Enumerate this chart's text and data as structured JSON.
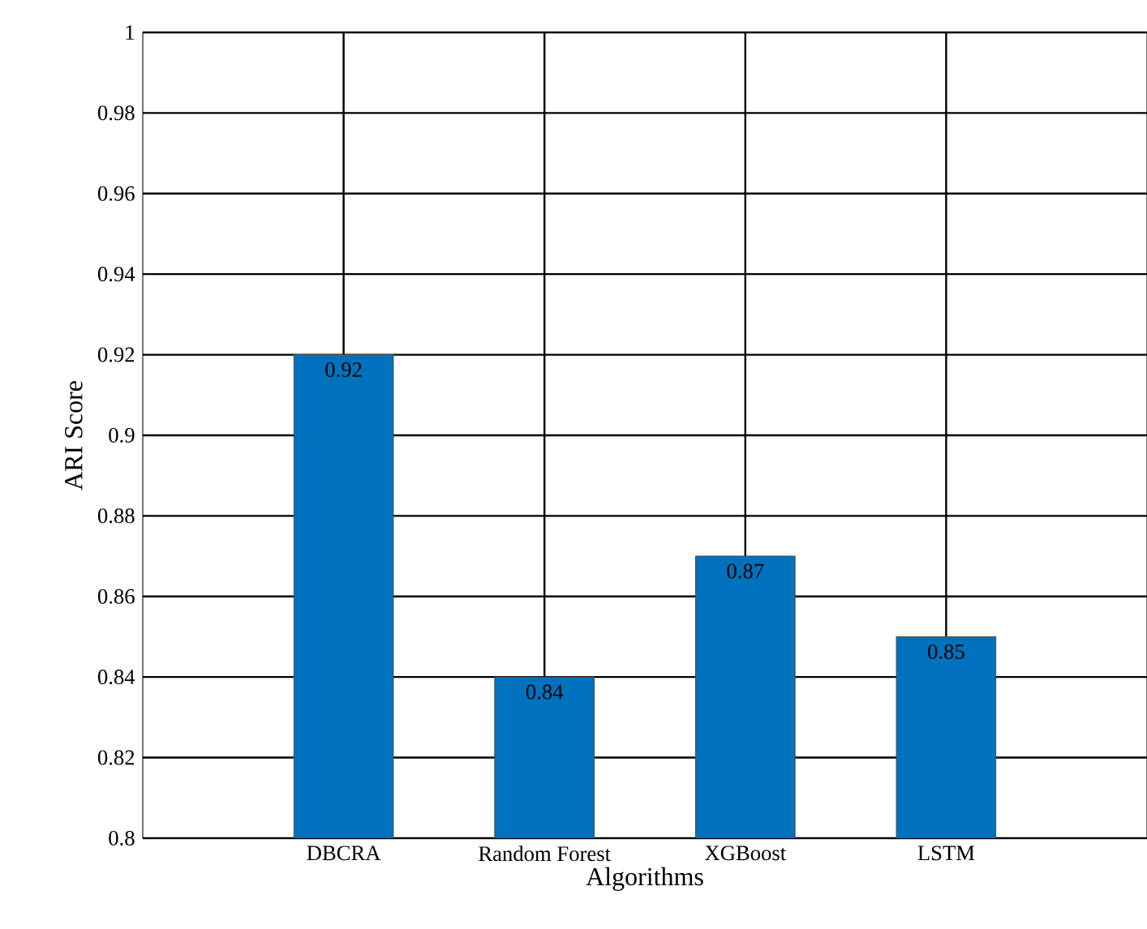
{
  "chart_data": {
    "type": "bar",
    "xlabel": "Algorithms",
    "ylabel": "ARI Score",
    "categories": [
      "DBCRA",
      "Random Forest",
      "XGBoost",
      "LSTM"
    ],
    "values": [
      0.92,
      0.84,
      0.87,
      0.85
    ],
    "color": "#0072bd",
    "ylim": [
      0.8,
      1
    ],
    "yticks": [
      0.8,
      0.82,
      0.84,
      0.86,
      0.88,
      0.9,
      0.92,
      0.94,
      0.96,
      0.98,
      1
    ],
    "grid": true,
    "data_labels": true
  }
}
